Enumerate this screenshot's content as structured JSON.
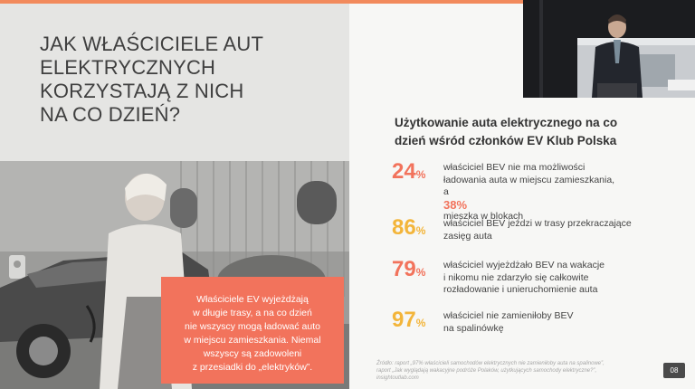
{
  "slide": {
    "headline": [
      "JAK WŁAŚCICIELE AUT",
      "ELEKTRYCZNYCH",
      "KORZYSTAJĄ Z NICH",
      "NA CO DZIEŃ?"
    ],
    "callout": [
      "Właściciele EV wyjeżdżają",
      "w długie trasy, a na co dzień",
      "nie wszyscy mogą ładować auto",
      "w miejscu zamieszkania. Niemal",
      "wszyscy są zadowoleni",
      "z przesiadki do „elektryków”."
    ],
    "right_title": [
      "Użytkowanie auta elektrycznego na co",
      "dzień wśród członków EV Klub Polska"
    ],
    "stats": [
      {
        "value": "24",
        "unit": "%",
        "line1": "właściciel BEV nie ma możliwości",
        "line2": "ładowania auta w miejscu zamieszkania,",
        "line3_pre": "a ",
        "line3_value": "38%",
        "line3_post": " mieszka w blokach"
      },
      {
        "value": "86",
        "unit": "%",
        "lines": [
          "właściciel BEV jeździ w trasy przekraczające",
          "zasięg auta"
        ]
      },
      {
        "value": "79",
        "unit": "%",
        "lines": [
          "właściciel wyjeżdżało BEV na wakacje",
          "i nikomu nie zdarzyło się całkowite",
          "rozładowanie i unieruchomienie auta"
        ]
      },
      {
        "value": "97",
        "unit": "%",
        "lines": [
          "właściciel nie zamieniłoby BEV",
          "na spalinówkę"
        ]
      }
    ],
    "source": [
      "Źródło: raport „97% właścicieli samochodów elektrycznych nie zamieniłoby auta na spalinowe”,",
      "raport „Jak wyglądają wakacyjne podróże Polaków, użytkujących samochody elektryczne?”,",
      "insightoutlab.com"
    ],
    "page_number": "08"
  },
  "colors": {
    "accent_orange": "#f2735c",
    "accent_yellow": "#f3b53a",
    "top_bar": "#f28a5c"
  },
  "icons": {
    "photo": "woman-charging-ev-photo",
    "video": "presenter-video-feed"
  }
}
